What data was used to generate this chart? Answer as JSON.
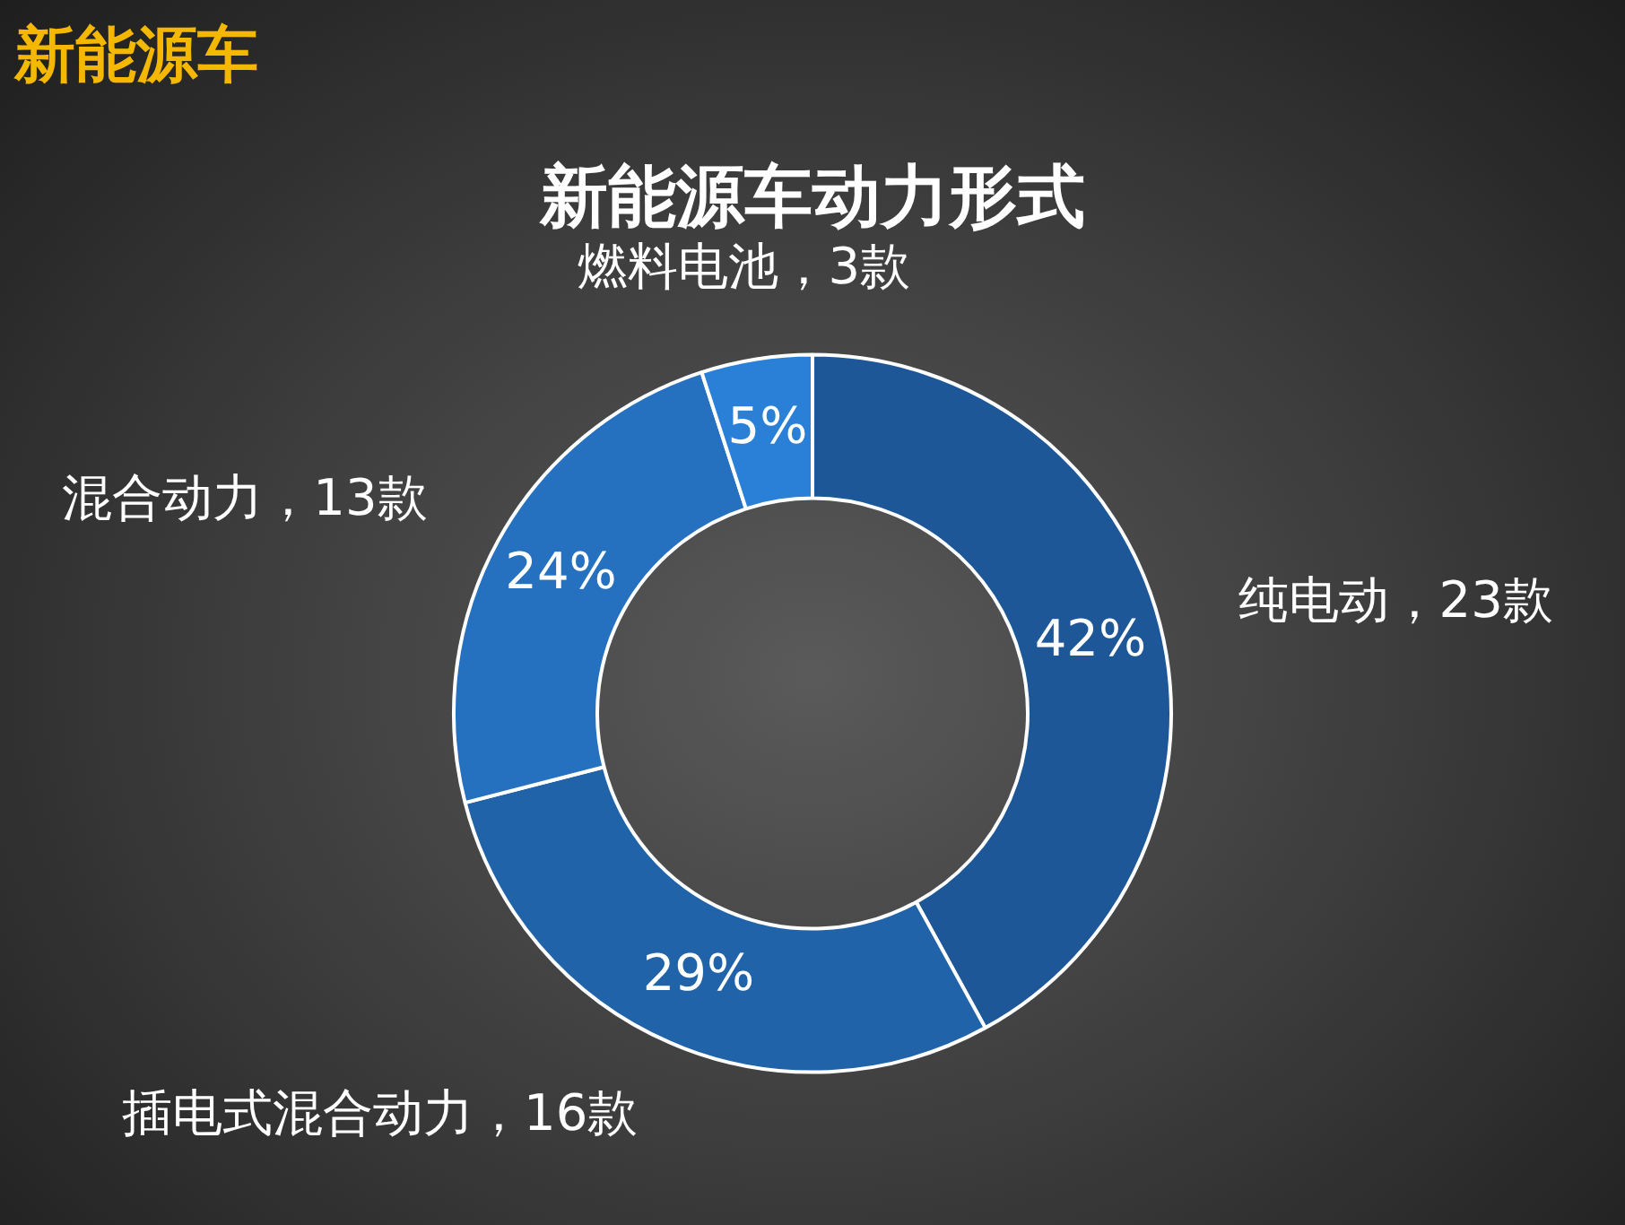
{
  "chart_data": {
    "type": "donut",
    "title": "新能源车动力形式",
    "categories": [
      "纯电动，23款",
      "插电式混合动力，16款",
      "混合动力，13款",
      "燃料电池，3款"
    ],
    "values": [
      42,
      29,
      24,
      5
    ],
    "value_labels": [
      "42%",
      "29%",
      "24%",
      "5%"
    ],
    "colors": [
      "#1d5797",
      "#2063a8",
      "#2570bf",
      "#2a80d6"
    ],
    "legend": false,
    "annotations": [
      "新能源车"
    ]
  }
}
